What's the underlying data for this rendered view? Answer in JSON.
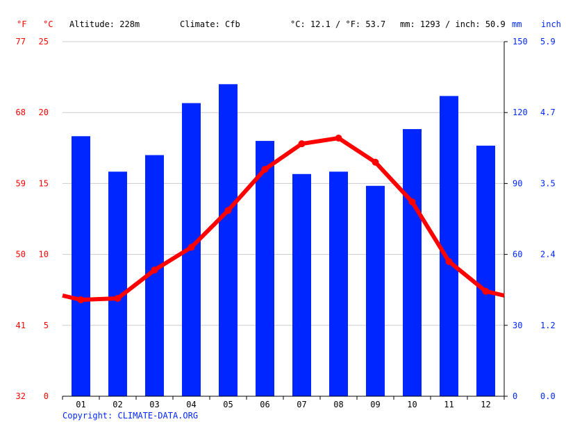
{
  "header": {
    "altitude": "Altitude: 228m",
    "climate": "Climate: Cfb",
    "avg_temp": "°C: 12.1 / °F: 53.7",
    "avg_precip": "mm: 1293 / inch: 50.9"
  },
  "units": {
    "left_f": "°F",
    "left_c": "°C",
    "right_mm": "mm",
    "right_inch": "inch"
  },
  "copyright": "Copyright: CLIMATE-DATA.ORG",
  "colors": {
    "temperature": "#ff0000",
    "precipitation": "#0026ff",
    "grid": "#cccccc"
  },
  "chart_data": {
    "type": "bar",
    "categories": [
      "01",
      "02",
      "03",
      "04",
      "05",
      "06",
      "07",
      "08",
      "09",
      "10",
      "11",
      "12"
    ],
    "series": [
      {
        "type": "bar",
        "axis": "right",
        "values": [
          110,
          95,
          102,
          124,
          132,
          108,
          94,
          95,
          89,
          113,
          127,
          106
        ]
      },
      {
        "type": "line",
        "axis": "left",
        "values": [
          6.8,
          6.9,
          8.9,
          10.5,
          13.1,
          16.0,
          17.8,
          18.2,
          16.5,
          13.7,
          9.5,
          7.4
        ]
      }
    ],
    "temp_ylim": [
      0,
      25
    ],
    "precip_ylim": [
      0,
      150
    ],
    "left_ticks_c": [
      "0",
      "5",
      "10",
      "15",
      "20",
      "25"
    ],
    "left_ticks_f": [
      "32",
      "41",
      "50",
      "59",
      "68",
      "77"
    ],
    "right_ticks_mm": [
      "0",
      "30",
      "60",
      "90",
      "120",
      "150"
    ],
    "right_ticks_inch": [
      "0.0",
      "1.2",
      "2.4",
      "3.5",
      "4.7",
      "5.9"
    ],
    "grid": true
  }
}
